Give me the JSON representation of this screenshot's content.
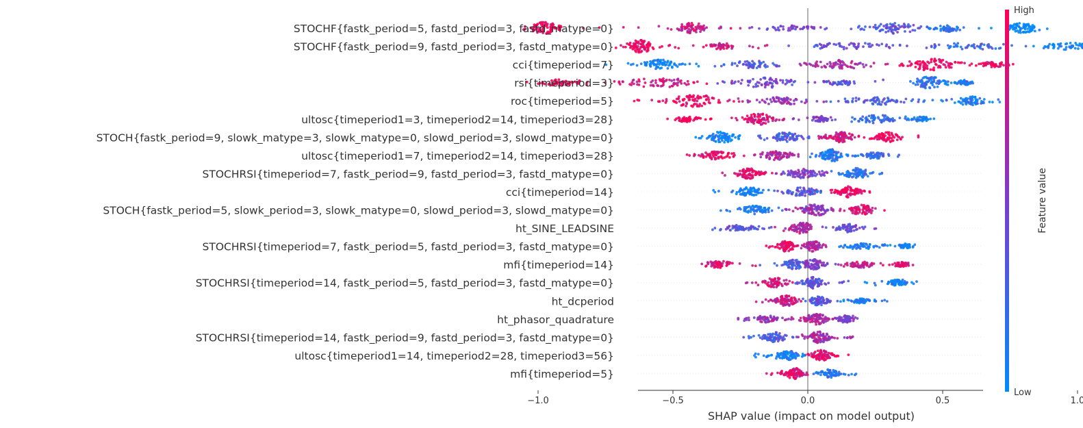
{
  "chart_data": {
    "type": "scatter",
    "title": "",
    "xlabel": "SHAP value (impact on model output)",
    "ylabel": "",
    "xlim": [
      -1.25,
      1.3
    ],
    "xticks": [
      {
        "value": -1.0,
        "label": "−1.0"
      },
      {
        "value": -0.5,
        "label": "−0.5"
      },
      {
        "value": 0.0,
        "label": "0.0"
      },
      {
        "value": 0.5,
        "label": "0.5"
      },
      {
        "value": 1.0,
        "label": "1.0"
      }
    ],
    "colorbar": {
      "label": "Feature value",
      "high_label": "High",
      "low_label": "Low",
      "low_color": "#008bfb",
      "high_color": "#ff0052"
    },
    "features": [
      {
        "name": "STOCHF{fastk_period=5, fastd_period=3, fastd_matype=0}",
        "min": -1.12,
        "max": 0.95,
        "clusters": [
          [
            -0.98,
            0.07,
            0.95,
            1.0
          ],
          [
            -0.43,
            0.07,
            0.8,
            0.8
          ],
          [
            -0.05,
            0.15,
            0.3,
            0.45
          ],
          [
            0.33,
            0.12,
            0.85,
            0.35
          ],
          [
            0.52,
            0.06,
            0.5,
            0.15
          ],
          [
            0.8,
            0.07,
            0.8,
            0.0
          ]
        ]
      },
      {
        "name": "STOCHF{fastk_period=9, fastd_period=3, fastd_matype=0}",
        "min": -0.77,
        "max": 1.18,
        "clusters": [
          [
            -0.62,
            0.06,
            1.0,
            0.95
          ],
          [
            -0.32,
            0.08,
            0.4,
            0.8
          ],
          [
            0.15,
            0.2,
            0.5,
            0.4
          ],
          [
            0.6,
            0.2,
            0.45,
            0.25
          ],
          [
            0.98,
            0.12,
            0.5,
            0.05
          ]
        ]
      },
      {
        "name": "cci{timeperiod=7}",
        "min": -0.77,
        "max": 0.8,
        "clusters": [
          [
            -0.55,
            0.08,
            0.75,
            0.05
          ],
          [
            -0.2,
            0.12,
            0.5,
            0.35
          ],
          [
            0.12,
            0.15,
            0.65,
            0.65
          ],
          [
            0.45,
            0.12,
            0.95,
            0.95
          ],
          [
            0.68,
            0.07,
            0.4,
            0.9
          ]
        ]
      },
      {
        "name": "rsi{timeperiod=3}",
        "min": -1.06,
        "max": 0.62,
        "clusters": [
          [
            -0.92,
            0.08,
            0.4,
            1.0
          ],
          [
            -0.55,
            0.15,
            0.75,
            0.8
          ],
          [
            -0.15,
            0.15,
            0.75,
            0.45
          ],
          [
            0.12,
            0.08,
            0.3,
            0.35
          ],
          [
            0.45,
            0.08,
            0.9,
            0.15
          ],
          [
            0.58,
            0.04,
            0.3,
            0.1
          ]
        ]
      },
      {
        "name": "roc{timeperiod=5}",
        "min": -0.67,
        "max": 0.74,
        "clusters": [
          [
            -0.42,
            0.12,
            0.95,
            0.95
          ],
          [
            -0.1,
            0.12,
            0.6,
            0.6
          ],
          [
            0.25,
            0.15,
            0.6,
            0.3
          ],
          [
            0.6,
            0.07,
            0.65,
            0.1
          ]
        ]
      },
      {
        "name": "ultosc{timeperiod1=3, timeperiod2=14, timeperiod3=28}",
        "min": -0.52,
        "max": 0.48,
        "clusters": [
          [
            -0.45,
            0.05,
            0.4,
            1.0
          ],
          [
            -0.18,
            0.07,
            0.9,
            0.85
          ],
          [
            0.05,
            0.05,
            0.4,
            0.5
          ],
          [
            0.25,
            0.1,
            0.6,
            0.2
          ],
          [
            0.42,
            0.04,
            0.3,
            0.1
          ]
        ]
      },
      {
        "name": "STOCH{fastk_period=9, slowk_matype=3, slowk_matype=0, slowd_period=3, slowd_matype=0}",
        "min": -0.45,
        "max": 0.43,
        "clusters": [
          [
            -0.32,
            0.07,
            0.85,
            0.05
          ],
          [
            -0.08,
            0.08,
            0.7,
            0.3
          ],
          [
            0.12,
            0.07,
            0.8,
            0.8
          ],
          [
            0.3,
            0.06,
            0.75,
            0.95
          ]
        ]
      },
      {
        "name": "ultosc{timeperiod1=7, timeperiod2=14, timeperiod3=28}",
        "min": -0.47,
        "max": 0.34,
        "clusters": [
          [
            -0.35,
            0.08,
            0.6,
            0.9
          ],
          [
            -0.12,
            0.08,
            0.7,
            0.7
          ],
          [
            0.09,
            0.05,
            0.95,
            0.15
          ],
          [
            0.25,
            0.05,
            0.5,
            0.2
          ]
        ]
      },
      {
        "name": "STOCHRSI{timeperiod=7, fastk_period=9, fastd_period=3, fastd_matype=0}",
        "min": -0.32,
        "max": 0.3,
        "clusters": [
          [
            -0.22,
            0.05,
            0.85,
            0.9
          ],
          [
            -0.02,
            0.07,
            0.7,
            0.5
          ],
          [
            0.18,
            0.06,
            0.85,
            0.15
          ]
        ]
      },
      {
        "name": "cci{timeperiod=14}",
        "min": -0.35,
        "max": 0.24,
        "clusters": [
          [
            -0.22,
            0.06,
            0.7,
            0.05
          ],
          [
            -0.02,
            0.06,
            0.7,
            0.35
          ],
          [
            0.15,
            0.05,
            0.85,
            0.95
          ]
        ]
      },
      {
        "name": "STOCH{fastk_period=5, slowk_period=3, slowk_matype=0, slowd_period=3, slowd_matype=0}",
        "min": -0.33,
        "max": 0.3,
        "clusters": [
          [
            -0.2,
            0.07,
            0.6,
            0.1
          ],
          [
            0.03,
            0.06,
            0.95,
            0.6
          ],
          [
            0.2,
            0.06,
            0.75,
            0.85
          ]
        ]
      },
      {
        "name": "ht_SINE_LEADSINE",
        "min": -0.4,
        "max": 0.27,
        "clusters": [
          [
            -0.25,
            0.07,
            0.4,
            0.35
          ],
          [
            -0.02,
            0.05,
            0.9,
            0.7
          ],
          [
            0.15,
            0.05,
            0.6,
            0.4
          ]
        ]
      },
      {
        "name": "STOCHRSI{timeperiod=7, fastk_period=5, fastd_period=3, fastd_matype=0}",
        "min": -0.18,
        "max": 0.4,
        "clusters": [
          [
            -0.08,
            0.04,
            0.85,
            0.95
          ],
          [
            0.02,
            0.04,
            0.8,
            0.7
          ],
          [
            0.2,
            0.08,
            0.4,
            0.1
          ],
          [
            0.36,
            0.03,
            0.3,
            0.05
          ]
        ]
      },
      {
        "name": "mfi{timeperiod=14}",
        "min": -0.43,
        "max": 0.4,
        "clusters": [
          [
            -0.33,
            0.06,
            0.5,
            0.85
          ],
          [
            -0.05,
            0.05,
            0.7,
            0.3
          ],
          [
            0.02,
            0.05,
            0.8,
            0.5
          ],
          [
            0.2,
            0.06,
            0.45,
            0.8
          ],
          [
            0.35,
            0.04,
            0.3,
            0.9
          ]
        ]
      },
      {
        "name": "STOCHRSI{timeperiod=14, fastk_period=5, fastd_period=3, fastd_matype=0}",
        "min": -0.25,
        "max": 0.42,
        "clusters": [
          [
            -0.12,
            0.06,
            0.7,
            0.85
          ],
          [
            0.02,
            0.04,
            0.9,
            0.35
          ],
          [
            0.33,
            0.04,
            0.45,
            0.05
          ]
        ]
      },
      {
        "name": "ht_dcperiod",
        "min": -0.2,
        "max": 0.3,
        "clusters": [
          [
            -0.08,
            0.05,
            0.8,
            0.8
          ],
          [
            0.04,
            0.04,
            0.7,
            0.35
          ],
          [
            0.2,
            0.05,
            0.3,
            0.1
          ]
        ]
      },
      {
        "name": "ht_phasor_quadrature",
        "min": -0.27,
        "max": 0.2,
        "clusters": [
          [
            -0.15,
            0.06,
            0.5,
            0.6
          ],
          [
            0.03,
            0.05,
            0.9,
            0.7
          ],
          [
            0.14,
            0.04,
            0.5,
            0.5
          ]
        ]
      },
      {
        "name": "STOCHRSI{timeperiod=14, fastk_period=9, fastd_period=3, fastd_matype=0}",
        "min": -0.24,
        "max": 0.17,
        "clusters": [
          [
            -0.12,
            0.05,
            0.75,
            0.3
          ],
          [
            0.04,
            0.05,
            0.9,
            0.65
          ]
        ]
      },
      {
        "name": "ultosc{timeperiod1=14, timeperiod2=28, timeperiod3=56}",
        "min": -0.21,
        "max": 0.16,
        "clusters": [
          [
            -0.07,
            0.05,
            0.7,
            0.05
          ],
          [
            0.05,
            0.04,
            0.85,
            0.9
          ]
        ]
      },
      {
        "name": "mfi{timeperiod=5}",
        "min": -0.18,
        "max": 0.19,
        "clusters": [
          [
            -0.05,
            0.04,
            0.9,
            0.85
          ],
          [
            0.08,
            0.04,
            0.6,
            0.15
          ]
        ]
      }
    ]
  }
}
